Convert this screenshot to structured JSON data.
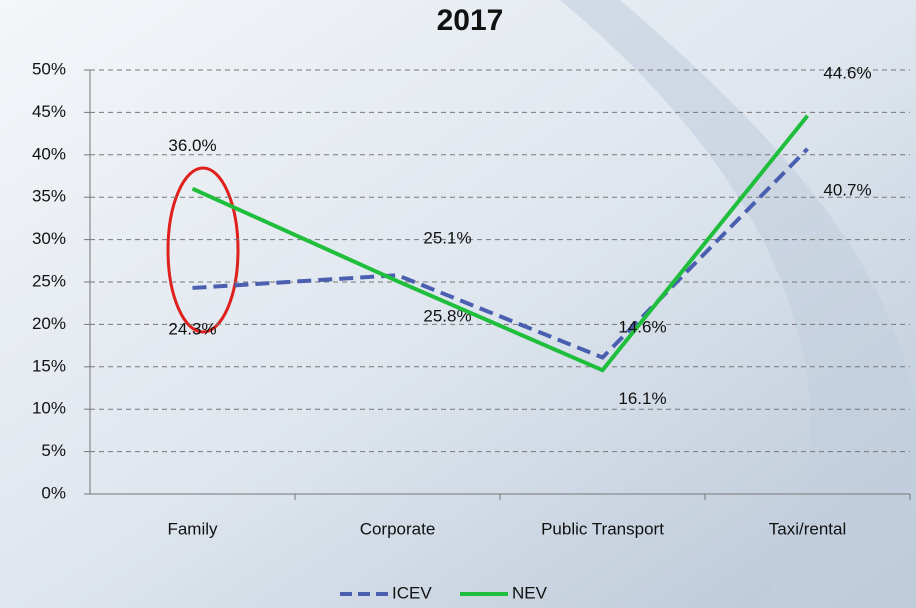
{
  "chart_data": {
    "type": "line",
    "title": "2017",
    "categories": [
      "Family",
      "Corporate",
      "Public Transport",
      "Taxi/rental"
    ],
    "series": [
      {
        "name": "ICEV",
        "color": "#4a5fb0",
        "dash": true,
        "values": [
          24.3,
          25.8,
          16.1,
          40.7
        ],
        "value_labels": [
          "24.3%",
          "25.8%",
          "16.1%",
          "40.7%"
        ]
      },
      {
        "name": "NEV",
        "color": "#1fbe3c",
        "dash": false,
        "values": [
          36.0,
          25.1,
          14.6,
          44.6
        ],
        "value_labels": [
          "36.0%",
          "25.1%",
          "14.6%",
          "44.6%"
        ]
      }
    ],
    "ylim": [
      0,
      50
    ],
    "yticks": [
      {
        "value": 0,
        "label": "0%"
      },
      {
        "value": 5,
        "label": "5%"
      },
      {
        "value": 10,
        "label": "10%"
      },
      {
        "value": 15,
        "label": "15%"
      },
      {
        "value": 20,
        "label": "20%"
      },
      {
        "value": 25,
        "label": "25%"
      },
      {
        "value": 30,
        "label": "30%"
      },
      {
        "value": 35,
        "label": "35%"
      },
      {
        "value": 40,
        "label": "40%"
      },
      {
        "value": 45,
        "label": "45%"
      },
      {
        "value": 50,
        "label": "50%"
      }
    ],
    "grid": true
  }
}
